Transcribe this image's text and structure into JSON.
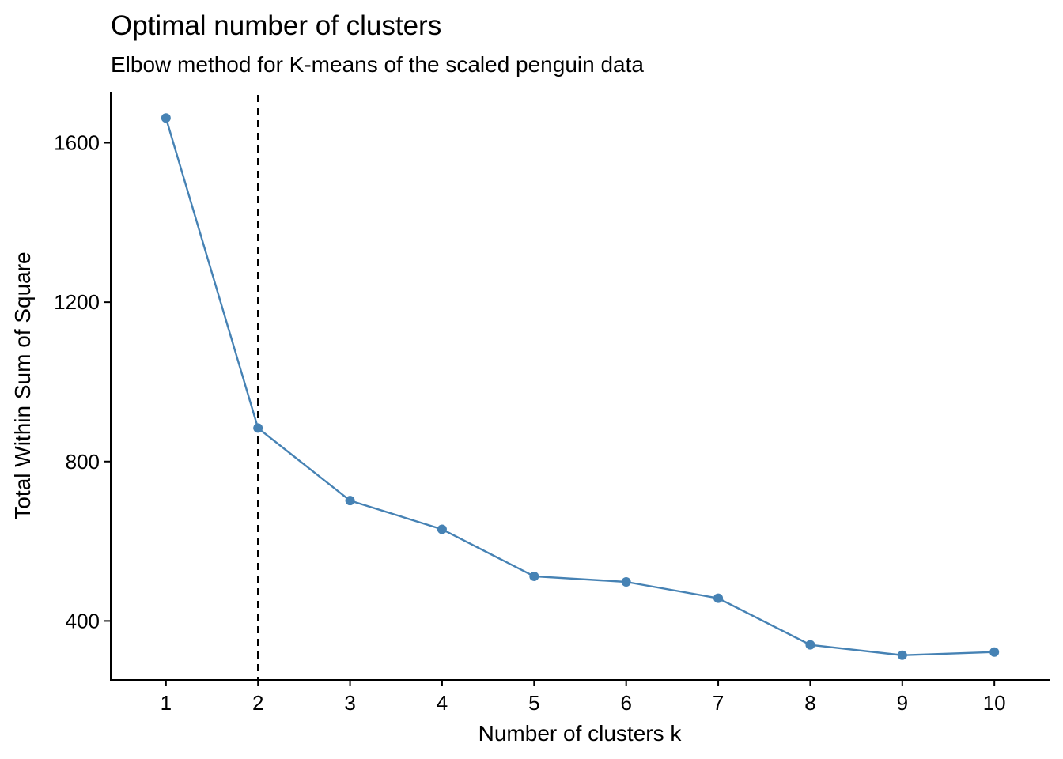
{
  "chart_data": {
    "type": "line",
    "title": "Optimal number of clusters",
    "subtitle": "Elbow method for K-means of the scaled penguin data",
    "xlabel": "Number of clusters k",
    "ylabel": "Total Within Sum of Square",
    "x": [
      1,
      2,
      3,
      4,
      5,
      6,
      7,
      8,
      9,
      10
    ],
    "x_tick_labels": [
      "1",
      "2",
      "3",
      "4",
      "5",
      "6",
      "7",
      "8",
      "9",
      "10"
    ],
    "y_ticks": [
      400,
      800,
      1200,
      1600
    ],
    "y_tick_labels": [
      "400",
      "800",
      "1200",
      "1600"
    ],
    "ylim": [
      252,
      1728
    ],
    "xlim": [
      0.4,
      10.6
    ],
    "series": [
      {
        "values": [
          1662,
          884,
          702,
          630,
          512,
          498,
          457,
          340,
          314,
          322
        ],
        "color": "#4682B4"
      }
    ],
    "reference_line": {
      "x": 2,
      "style": "dashed",
      "color": "#000000"
    },
    "grid": false,
    "legend": "none"
  }
}
